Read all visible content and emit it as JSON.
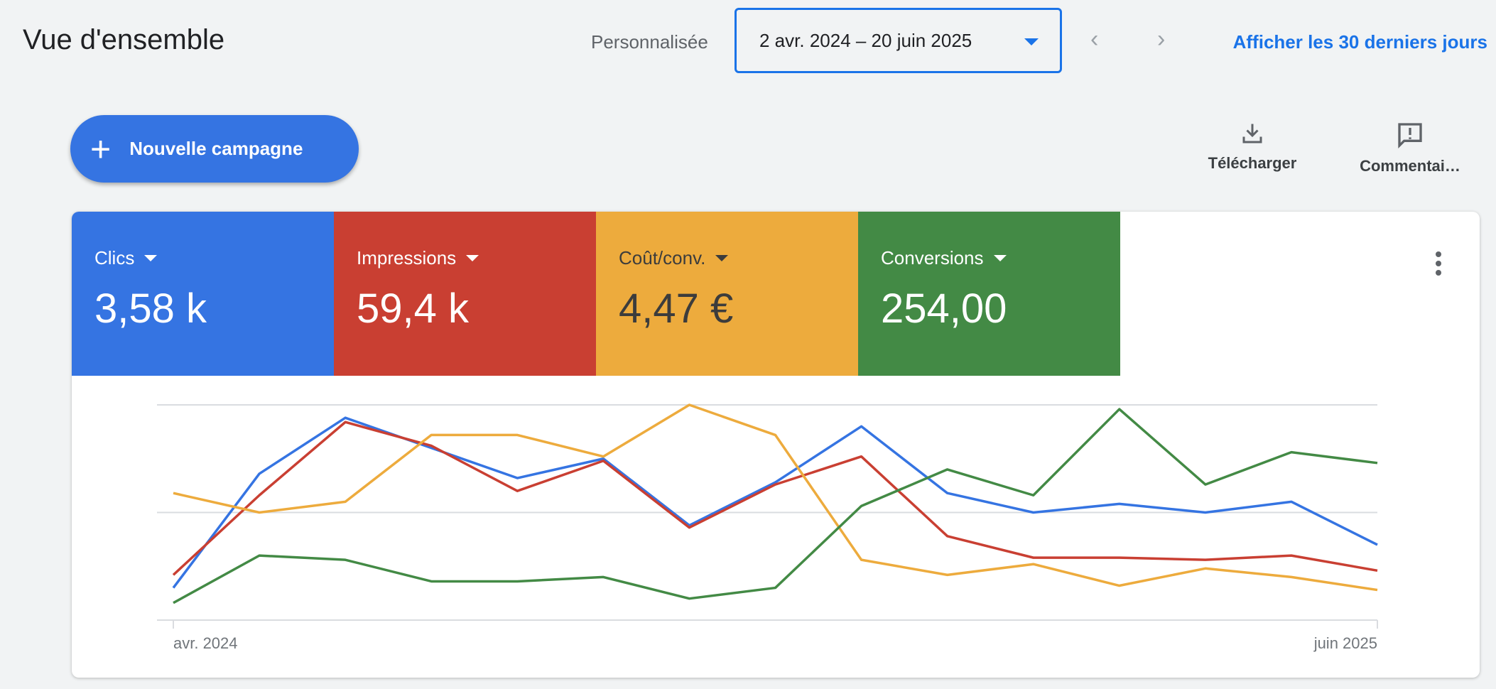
{
  "header": {
    "title": "Vue d'ensemble",
    "range_type": "Personnalisée",
    "date_range": "2 avr. 2024 – 20 juin 2025",
    "prev": "‹",
    "next": "›",
    "last30_link": "Afficher les 30 derniers jours"
  },
  "actions": {
    "new_campaign": "Nouvelle campagne",
    "download": "Télécharger",
    "feedback": "Commentai…"
  },
  "metrics": [
    {
      "label": "Clics",
      "value": "3,58 k",
      "color": "#3574e2"
    },
    {
      "label": "Impressions",
      "value": "59,4 k",
      "color": "#c93f32"
    },
    {
      "label": "Coût/conv.",
      "value": "4,47 €",
      "color": "#edab3d"
    },
    {
      "label": "Conversions",
      "value": "254,00",
      "color": "#438a45"
    }
  ],
  "chart_data": {
    "type": "line",
    "xlabel": "",
    "ylabel": "",
    "ylim": [
      0,
      100
    ],
    "grid": true,
    "x_tick_labels": [
      "avr. 2024",
      "juin 2025"
    ],
    "x": [
      1,
      2,
      3,
      4,
      5,
      6,
      7,
      8,
      9,
      10,
      11,
      12,
      13,
      14,
      15
    ],
    "series": [
      {
        "name": "Clics",
        "color": "#3574e2",
        "values": [
          15,
          68,
          94,
          80,
          66,
          75,
          44,
          64,
          90,
          59,
          50,
          54,
          50,
          55,
          35
        ]
      },
      {
        "name": "Impressions",
        "color": "#c93f32",
        "values": [
          21,
          58,
          92,
          81,
          60,
          74,
          43,
          63,
          76,
          39,
          29,
          29,
          28,
          30,
          23
        ]
      },
      {
        "name": "Coût/conv.",
        "color": "#edab3d",
        "values": [
          59,
          50,
          55,
          86,
          86,
          76,
          100,
          86,
          28,
          21,
          26,
          16,
          24,
          20,
          14
        ]
      },
      {
        "name": "Conversions",
        "color": "#438a45",
        "values": [
          8,
          30,
          28,
          18,
          18,
          20,
          10,
          15,
          53,
          70,
          58,
          98,
          63,
          78,
          73
        ]
      }
    ]
  }
}
